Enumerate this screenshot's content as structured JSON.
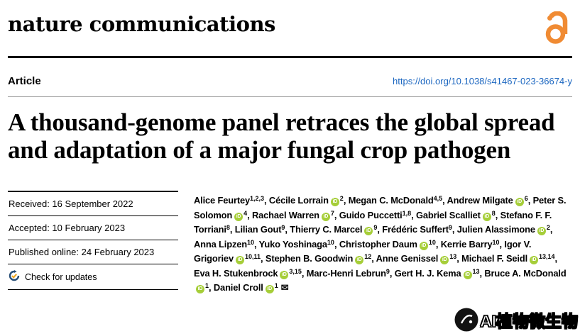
{
  "header": {
    "journal": "nature communications"
  },
  "article_bar": {
    "label": "Article",
    "doi": "https://doi.org/10.1038/s41467-023-36674-y"
  },
  "title": "A thousand-genome panel retraces the global spread and adaptation of a major fungal crop pathogen",
  "meta": {
    "rows": [
      "Received: 16 September 2022",
      "Accepted: 10 February 2023",
      "Published online: 24 February 2023"
    ],
    "check_updates_label": "Check for updates"
  },
  "authors": {
    "list": [
      {
        "name": "Alice Feurtey",
        "sup": "1,2,3",
        "orcid": false
      },
      {
        "name": "Cécile Lorrain",
        "sup": "2",
        "orcid": true
      },
      {
        "name": "Megan C. McDonald",
        "sup": "4,5",
        "orcid": false
      },
      {
        "name": "Andrew Milgate",
        "sup": "6",
        "orcid": true
      },
      {
        "name": "Peter S. Solomon",
        "sup": "4",
        "orcid": true
      },
      {
        "name": "Rachael Warren",
        "sup": "7",
        "orcid": true
      },
      {
        "name": "Guido Puccetti",
        "sup": "1,8",
        "orcid": false
      },
      {
        "name": "Gabriel Scalliet",
        "sup": "8",
        "orcid": true
      },
      {
        "name": "Stefano F. F. Torriani",
        "sup": "8",
        "orcid": false
      },
      {
        "name": "Lilian Gout",
        "sup": "9",
        "orcid": false
      },
      {
        "name": "Thierry C. Marcel",
        "sup": "9",
        "orcid": true
      },
      {
        "name": "Frédéric Suffert",
        "sup": "9",
        "orcid": false
      },
      {
        "name": "Julien Alassimone",
        "sup": "2",
        "orcid": true
      },
      {
        "name": "Anna Lipzen",
        "sup": "10",
        "orcid": false
      },
      {
        "name": "Yuko Yoshinaga",
        "sup": "10",
        "orcid": false
      },
      {
        "name": "Christopher Daum",
        "sup": "10",
        "orcid": true
      },
      {
        "name": "Kerrie Barry",
        "sup": "10",
        "orcid": false
      },
      {
        "name": "Igor V. Grigoriev",
        "sup": "10,11",
        "orcid": true
      },
      {
        "name": "Stephen B. Goodwin",
        "sup": "12",
        "orcid": true
      },
      {
        "name": "Anne Genissel",
        "sup": "13",
        "orcid": true
      },
      {
        "name": "Michael F. Seidl",
        "sup": "13,14",
        "orcid": true
      },
      {
        "name": "Eva H. Stukenbrock",
        "sup": "3,15",
        "orcid": true
      },
      {
        "name": "Marc-Henri Lebrun",
        "sup": "9",
        "orcid": false
      },
      {
        "name": "Gert H. J. Kema",
        "sup": "13",
        "orcid": true
      },
      {
        "name": "Bruce A. McDonald",
        "sup": "1",
        "orcid": true
      },
      {
        "name": "Daniel Croll",
        "sup": "1",
        "orcid": true,
        "email": true
      }
    ]
  },
  "icons": {
    "orcid_glyph": "iD",
    "email_glyph": "✉"
  },
  "watermark": {
    "text": "AI植物微生物"
  },
  "colors": {
    "link_blue": "#1b66c0",
    "open_access_orange": "#f08b33",
    "orcid_green": "#a6ce39"
  }
}
